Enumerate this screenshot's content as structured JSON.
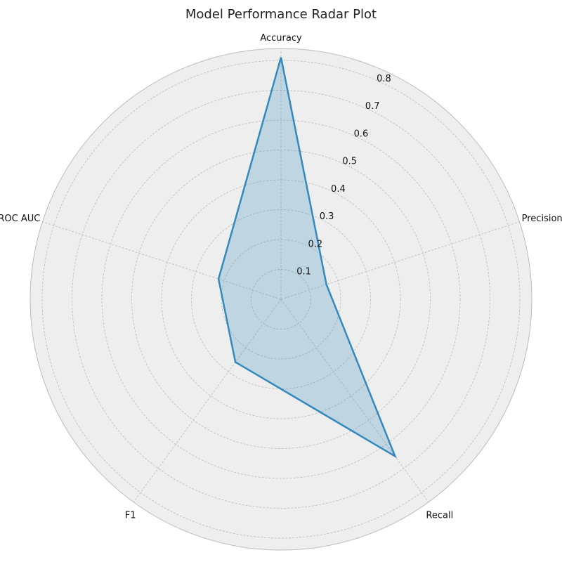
{
  "chart_data": {
    "type": "radar",
    "title": "Model Performance Radar Plot",
    "categories": [
      "Accuracy",
      "Precision",
      "Recall",
      "F1",
      "ROC AUC"
    ],
    "series": [
      {
        "values": [
          0.81,
          0.16,
          0.65,
          0.26,
          0.22
        ]
      }
    ],
    "rlim": [
      0,
      0.84
    ],
    "r_ticks": [
      0.1,
      0.2,
      0.3,
      0.4,
      0.5,
      0.6,
      0.7,
      0.8
    ],
    "r_tick_labels": [
      "0.1",
      "0.2",
      "0.3",
      "0.4",
      "0.5",
      "0.6",
      "0.7",
      "0.8"
    ],
    "grid": true,
    "colors": {
      "line": "#348abd",
      "fill": "#348abd",
      "background": "#eeeeee",
      "grid": "#bbbbbb",
      "frame": "#bcbcbc"
    }
  }
}
